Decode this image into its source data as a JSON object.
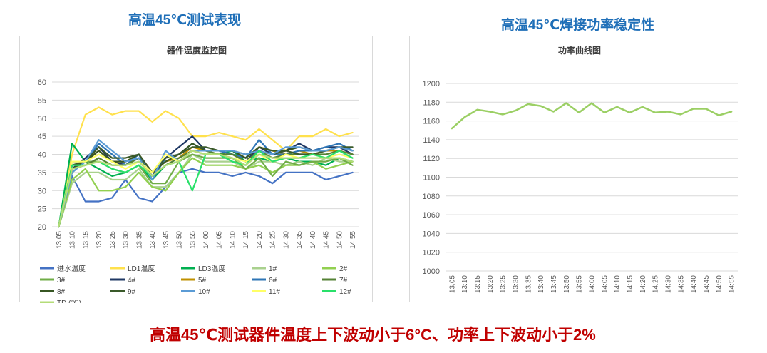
{
  "headings": {
    "left": "高温45℃测试表现",
    "right": "高温45℃焊接功率稳定性"
  },
  "footer": "高温45℃测试器件温度上下波动小于6°C、功率上下波动小于2%",
  "chart_data": [
    {
      "type": "line",
      "title": "器件温度监控图",
      "xlabel": "",
      "ylabel": "",
      "ylim": [
        20,
        60
      ],
      "yticks": [
        20,
        25,
        30,
        35,
        40,
        45,
        50,
        55,
        60
      ],
      "grid": true,
      "legend": "bottom",
      "categories": [
        "13:05",
        "13:10",
        "13:15",
        "13:20",
        "13:25",
        "13:30",
        "13:35",
        "13:40",
        "13:45",
        "13:50",
        "13:55",
        "14:00",
        "14:05",
        "14:10",
        "14:15",
        "14:20",
        "14:25",
        "14:30",
        "14:35",
        "14:40",
        "14:45",
        "14:50",
        "14:55"
      ],
      "series": [
        {
          "name": "进水温度",
          "color": "#4472c4",
          "values": [
            20,
            34,
            27,
            27,
            28,
            33,
            28,
            27,
            31,
            35,
            36,
            35,
            35,
            34,
            35,
            34,
            32,
            35,
            35,
            35,
            33,
            34,
            35
          ]
        },
        {
          "name": "LD1温度",
          "color": "#ffe14d",
          "values": [
            20,
            40,
            51,
            53,
            51,
            52,
            52,
            49,
            52,
            50,
            45,
            45,
            46,
            45,
            44,
            47,
            44,
            41,
            45,
            45,
            47,
            45,
            46
          ]
        },
        {
          "name": "LD3温度",
          "color": "#00b050",
          "values": [
            20,
            43,
            38,
            36,
            34,
            35,
            37,
            33,
            37,
            38,
            41,
            40,
            40,
            41,
            38,
            39,
            38,
            39,
            38,
            38,
            37,
            39,
            38
          ]
        },
        {
          "name": "1#",
          "color": "#a9d18e",
          "values": [
            20,
            32,
            35,
            35,
            33,
            33,
            36,
            31,
            31,
            35,
            40,
            38,
            38,
            38,
            36,
            38,
            38,
            37,
            38,
            37,
            39,
            38,
            38
          ]
        },
        {
          "name": "2#",
          "color": "#92d050",
          "values": [
            20,
            33,
            36,
            30,
            30,
            31,
            35,
            31,
            30,
            35,
            39,
            37,
            37,
            37,
            36,
            37,
            35,
            37,
            37,
            38,
            36,
            37,
            38
          ]
        },
        {
          "name": "3#",
          "color": "#70ad47",
          "values": [
            20,
            35,
            38,
            38,
            36,
            35,
            37,
            32,
            32,
            38,
            40,
            39,
            39,
            39,
            36,
            39,
            34,
            38,
            37,
            38,
            38,
            39,
            37
          ]
        },
        {
          "name": "4#",
          "color": "#1f3864",
          "values": [
            20,
            36,
            39,
            42,
            38,
            37,
            39,
            34,
            39,
            42,
            45,
            41,
            41,
            40,
            38,
            42,
            40,
            41,
            43,
            41,
            42,
            42,
            40
          ]
        },
        {
          "name": "5#",
          "color": "#bf9000",
          "values": [
            20,
            37,
            38,
            41,
            38,
            38,
            40,
            35,
            38,
            39,
            42,
            41,
            40,
            40,
            39,
            42,
            41,
            40,
            41,
            40,
            41,
            41,
            40
          ]
        },
        {
          "name": "6#",
          "color": "#2e75b6",
          "values": [
            20,
            38,
            38,
            43,
            40,
            37,
            40,
            33,
            39,
            40,
            43,
            41,
            41,
            40,
            39,
            44,
            40,
            40,
            41,
            41,
            42,
            43,
            41
          ]
        },
        {
          "name": "7#",
          "color": "#548235",
          "values": [
            20,
            36,
            37,
            39,
            37,
            37,
            39,
            34,
            37,
            39,
            41,
            41,
            40,
            40,
            38,
            41,
            39,
            40,
            40,
            40,
            40,
            41,
            40
          ]
        },
        {
          "name": "8#",
          "color": "#375623",
          "values": [
            20,
            36,
            38,
            41,
            38,
            38,
            40,
            35,
            38,
            40,
            43,
            41,
            41,
            41,
            39,
            42,
            41,
            41,
            42,
            41,
            41,
            42,
            41
          ]
        },
        {
          "name": "9#",
          "color": "#3a5a2a",
          "values": [
            20,
            37,
            38,
            42,
            39,
            39,
            40,
            35,
            39,
            40,
            42,
            42,
            41,
            41,
            40,
            41,
            40,
            41,
            40,
            40,
            41,
            42,
            42
          ]
        },
        {
          "name": "10#",
          "color": "#5b9bd5",
          "values": [
            20,
            35,
            38,
            44,
            41,
            38,
            39,
            33,
            41,
            38,
            41,
            41,
            41,
            41,
            40,
            41,
            40,
            42,
            42,
            41,
            41,
            42,
            41
          ]
        },
        {
          "name": "11#",
          "color": "#ffff66",
          "values": [
            20,
            38,
            38,
            40,
            38,
            36,
            38,
            35,
            40,
            38,
            41,
            40,
            40,
            39,
            38,
            40,
            38,
            40,
            39,
            40,
            39,
            40,
            39
          ]
        },
        {
          "name": "12#",
          "color": "#29e06a",
          "values": [
            20,
            37,
            37,
            38,
            36,
            35,
            37,
            34,
            37,
            38,
            30,
            40,
            40,
            38,
            37,
            41,
            38,
            39,
            39,
            40,
            39,
            41,
            39
          ]
        },
        {
          "name": "TD (℃)",
          "color": "#b4dc78",
          "values": [
            20,
            36,
            37,
            38,
            37,
            37,
            38,
            34,
            37,
            38,
            41,
            40,
            40,
            39,
            37,
            40,
            39,
            39,
            39,
            39,
            39,
            39,
            38
          ]
        }
      ]
    },
    {
      "type": "line",
      "title": "功率曲线图",
      "xlabel": "",
      "ylabel": "",
      "ylim": [
        1000,
        1200
      ],
      "yticks": [
        1000,
        1020,
        1040,
        1060,
        1080,
        1100,
        1120,
        1140,
        1160,
        1180,
        1200
      ],
      "grid": true,
      "legend": "none",
      "categories": [
        "13:05",
        "13:10",
        "13:15",
        "13:20",
        "13:25",
        "13:30",
        "13:35",
        "13:40",
        "13:45",
        "13:50",
        "13:55",
        "14:00",
        "14:05",
        "14:10",
        "14:15",
        "14:20",
        "14:25",
        "14:30",
        "14:35",
        "14:40",
        "14:45",
        "14:50",
        "14:55"
      ],
      "series": [
        {
          "name": "功率",
          "color": "#9bcf64",
          "values": [
            1152,
            1164,
            1172,
            1170,
            1167,
            1171,
            1178,
            1176,
            1170,
            1179,
            1169,
            1179,
            1169,
            1175,
            1169,
            1175,
            1169,
            1170,
            1167,
            1173,
            1173,
            1166,
            1170
          ]
        }
      ]
    }
  ]
}
